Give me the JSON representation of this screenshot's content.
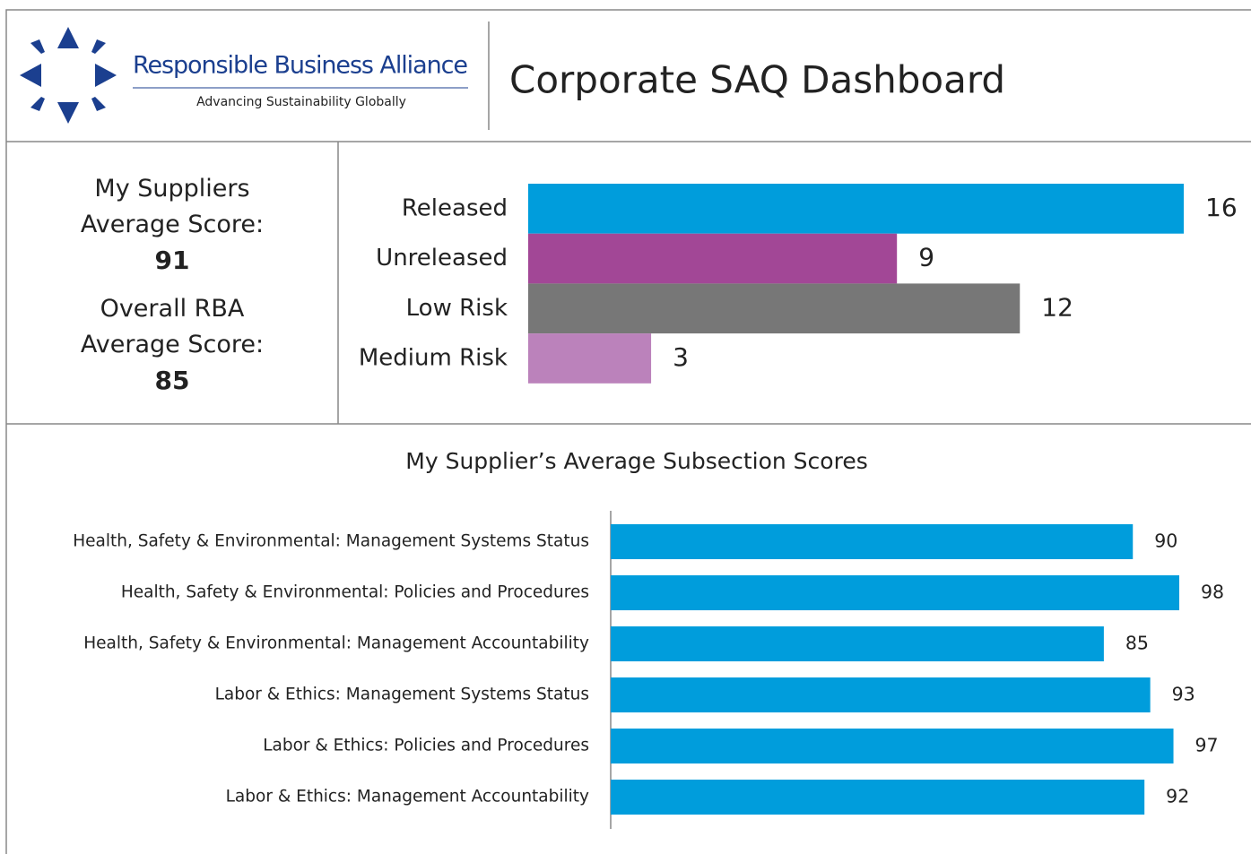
{
  "header": {
    "logo_name": "Responsible Business Alliance",
    "logo_tagline": "Advancing Sustainability Globally",
    "title": "Corporate SAQ Dashboard"
  },
  "scores": [
    {
      "label": "My Suppliers Average Score:",
      "value": 91
    },
    {
      "label": "Overall RBA Average Score:",
      "value": 85
    }
  ],
  "chart_data": [
    {
      "type": "bar",
      "orientation": "horizontal",
      "categories": [
        "Released",
        "Unreleased",
        "Low Risk",
        "Medium Risk"
      ],
      "values": [
        16,
        9,
        12,
        3
      ],
      "colors": [
        "#009ddc",
        "#a24796",
        "#777777",
        "#bb82bb"
      ]
    },
    {
      "type": "bar",
      "orientation": "horizontal",
      "title": "My Supplier’s Average Subsection Scores",
      "categories": [
        "Health, Safety & Environmental: Management Systems Status",
        "Health, Safety & Environmental: Policies and Procedures",
        "Health, Safety & Environmental: Management Accountability",
        "Labor & Ethics: Management Systems Status",
        "Labor & Ethics: Policies and Procedures",
        "Labor & Ethics: Management Accountability"
      ],
      "values": [
        90,
        98,
        85,
        93,
        97,
        92
      ],
      "color": "#009ddc"
    }
  ]
}
